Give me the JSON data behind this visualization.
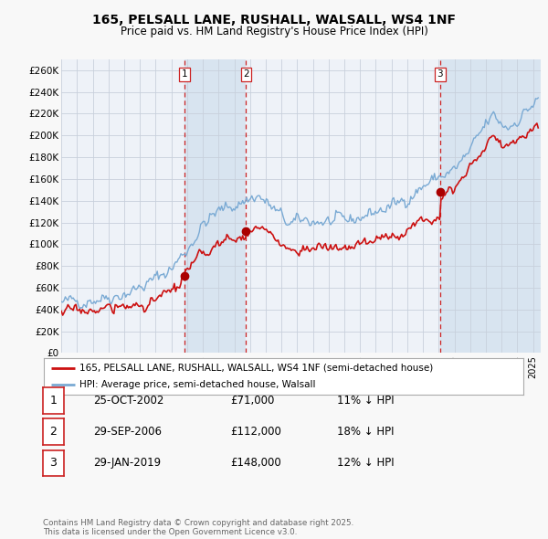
{
  "title": "165, PELSALL LANE, RUSHALL, WALSALL, WS4 1NF",
  "subtitle": "Price paid vs. HM Land Registry's House Price Index (HPI)",
  "ylim": [
    0,
    270000
  ],
  "yticks": [
    0,
    20000,
    40000,
    60000,
    80000,
    100000,
    120000,
    140000,
    160000,
    180000,
    200000,
    220000,
    240000,
    260000
  ],
  "ytick_labels": [
    "£0",
    "£20K",
    "£40K",
    "£60K",
    "£80K",
    "£100K",
    "£120K",
    "£140K",
    "£160K",
    "£180K",
    "£200K",
    "£220K",
    "£240K",
    "£260K"
  ],
  "bg_color": "#f0f4f8",
  "plot_bg_color": "#eef2f8",
  "grid_color": "#c8d0dc",
  "hpi_color": "#7aaad4",
  "price_color": "#cc1111",
  "sale_marker_color": "#aa0000",
  "vline_color": "#cc2222",
  "shade_color": "#d8e4f0",
  "transactions": [
    {
      "label": "1",
      "date_num": 2002.82,
      "price": 71000,
      "pct": "11%",
      "date_str": "25-OCT-2002"
    },
    {
      "label": "2",
      "date_num": 2006.75,
      "price": 112000,
      "pct": "18%",
      "date_str": "29-SEP-2006"
    },
    {
      "label": "3",
      "date_num": 2019.08,
      "price": 148000,
      "pct": "12%",
      "date_str": "29-JAN-2019"
    }
  ],
  "legend_label_price": "165, PELSALL LANE, RUSHALL, WALSALL, WS4 1NF (semi-detached house)",
  "legend_label_hpi": "HPI: Average price, semi-detached house, Walsall",
  "footnote": "Contains HM Land Registry data © Crown copyright and database right 2025.\nThis data is licensed under the Open Government Licence v3.0.",
  "xmin": 1995,
  "xmax": 2025.5,
  "fig_width": 6.0,
  "fig_height": 5.9,
  "dpi": 100
}
